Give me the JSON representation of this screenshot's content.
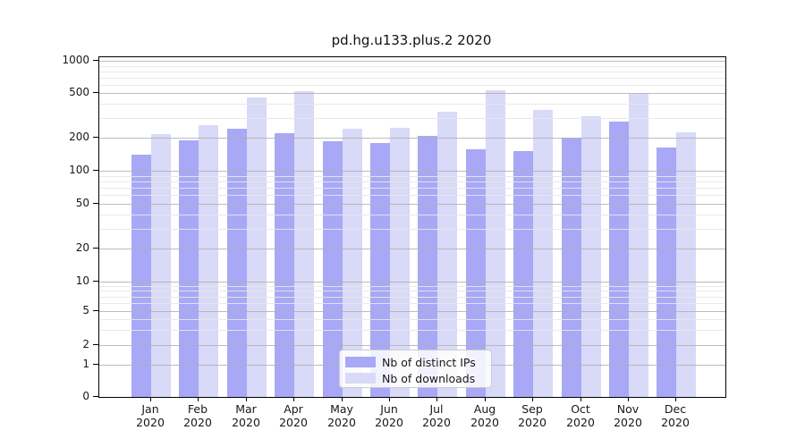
{
  "chart_data": {
    "type": "bar",
    "title": "pd.hg.u133.plus.2 2020",
    "categories": [
      "Jan",
      "Feb",
      "Mar",
      "Apr",
      "May",
      "Jun",
      "Jul",
      "Aug",
      "Sep",
      "Oct",
      "Nov",
      "Dec"
    ],
    "category_year": "2020",
    "series": [
      {
        "name": "Nb of distinct IPs",
        "color": "#a8a8f6",
        "values": [
          140,
          190,
          240,
          219,
          187,
          180,
          208,
          158,
          150,
          200,
          278,
          164
        ]
      },
      {
        "name": "Nb of downloads",
        "color": "#d9d9f8",
        "values": [
          215,
          260,
          455,
          520,
          242,
          246,
          340,
          532,
          355,
          310,
          487,
          225
        ]
      }
    ],
    "xlabel": "",
    "ylabel": "",
    "yscale": "symlog",
    "ylim": [
      0,
      1000
    ],
    "yticks": [
      0,
      1,
      2,
      5,
      10,
      20,
      50,
      100,
      200,
      500,
      1000
    ],
    "grid": true,
    "legend_position": "bottom-center"
  },
  "colors": {
    "major_grid": "#b0b0b0",
    "minor_grid": "#e7e7e7",
    "spine": "#000000",
    "text": "#191919",
    "background": "#ffffff"
  }
}
